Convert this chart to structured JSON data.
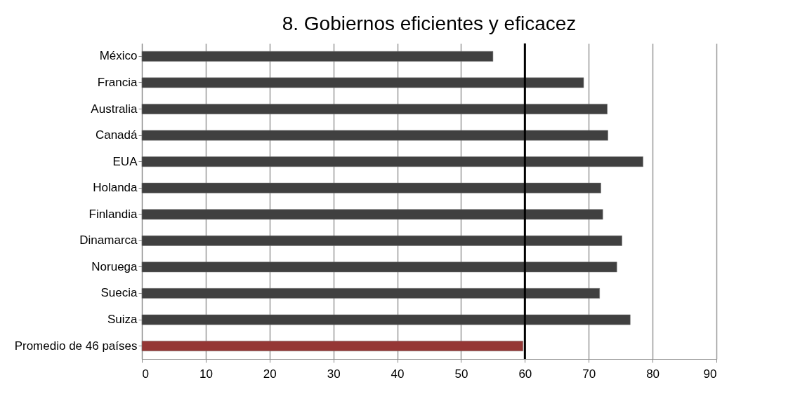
{
  "chart_data": {
    "type": "bar",
    "orientation": "horizontal",
    "title": "8. Gobiernos eficientes y eficacez",
    "categories": [
      "México",
      "Francia",
      "Australia",
      "Canadá",
      "EUA",
      "Holanda",
      "Finlandia",
      "Dinamarca",
      "Noruega",
      "Suecia",
      "Suiza",
      "Promedio de 46 países"
    ],
    "values": [
      55.0,
      69.2,
      72.9,
      73.0,
      78.5,
      71.9,
      72.2,
      75.2,
      74.4,
      71.7,
      76.5,
      59.7
    ],
    "colors": [
      "#404040",
      "#404040",
      "#404040",
      "#404040",
      "#404040",
      "#404040",
      "#404040",
      "#404040",
      "#404040",
      "#404040",
      "#404040",
      "#953735"
    ],
    "xlim": [
      0,
      90
    ],
    "xticks": [
      0,
      10,
      20,
      30,
      40,
      50,
      60,
      70,
      80,
      90
    ],
    "grid": "x",
    "ref_lines": [
      {
        "axis": "x",
        "value": 60,
        "color": "#000000"
      }
    ]
  }
}
